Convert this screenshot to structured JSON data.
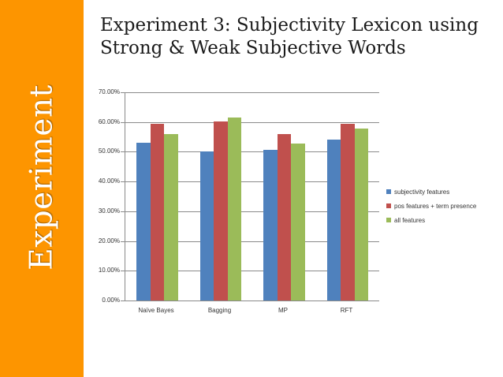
{
  "sidebar": {
    "label": "Experiment",
    "color": "#fd9500"
  },
  "slide": {
    "title_line1": "Experiment 3: Subjectivity Lexicon using",
    "title_line2": "Strong & Weak Subjective Words"
  },
  "chart_data": {
    "type": "bar",
    "title": "",
    "xlabel": "",
    "ylabel": "",
    "categories": [
      "Naïve Bayes",
      "Bagging",
      "MP",
      "RFT"
    ],
    "series": [
      {
        "name": "subjectivity features",
        "color": "#4f81bd",
        "values": [
          53.0,
          50.0,
          50.6,
          54.0
        ]
      },
      {
        "name": "pos features + term presence",
        "color": "#c0504d",
        "values": [
          59.5,
          60.3,
          56.0,
          59.5
        ]
      },
      {
        "name": "all features",
        "color": "#9bbb59",
        "values": [
          56.0,
          61.4,
          52.7,
          57.9
        ]
      }
    ],
    "ylim": [
      0,
      70
    ],
    "yticks": [
      "0.00%",
      "10.00%",
      "20.00%",
      "30.00%",
      "40.00%",
      "50.00%",
      "60.00%",
      "70.00%"
    ],
    "grid": true,
    "legend_position": "right"
  }
}
